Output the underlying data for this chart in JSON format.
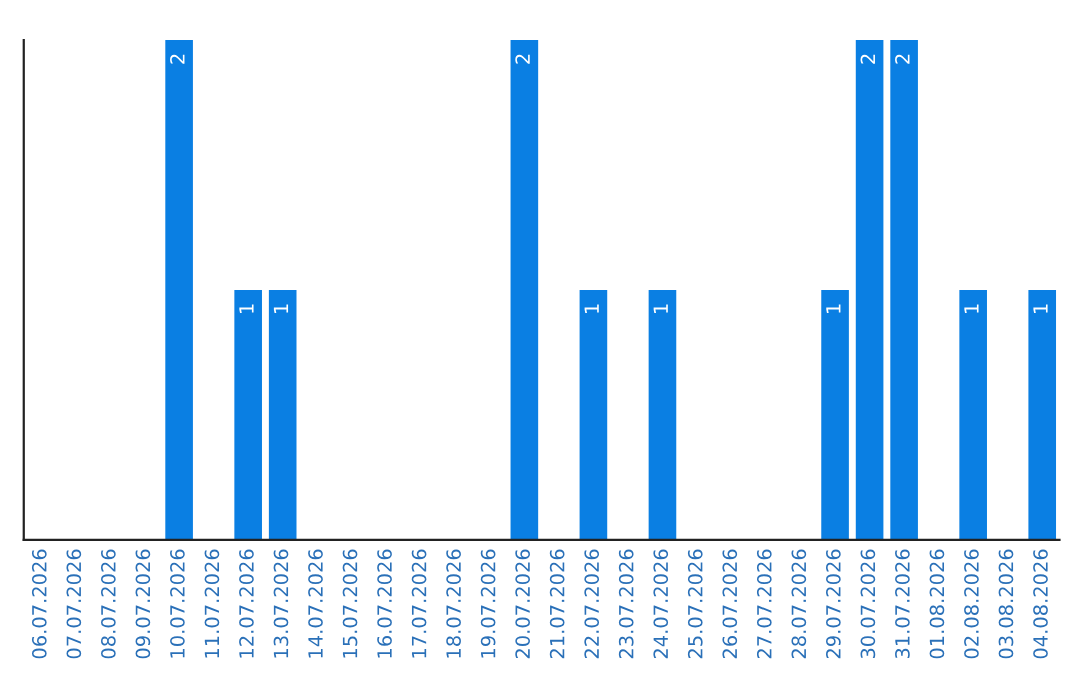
{
  "chart_data": {
    "type": "bar",
    "categories": [
      "06.07.2026",
      "07.07.2026",
      "08.07.2026",
      "09.07.2026",
      "10.07.2026",
      "11.07.2026",
      "12.07.2026",
      "13.07.2026",
      "14.07.2026",
      "15.07.2026",
      "16.07.2026",
      "17.07.2026",
      "18.07.2026",
      "19.07.2026",
      "20.07.2026",
      "21.07.2026",
      "22.07.2026",
      "23.07.2026",
      "24.07.2026",
      "25.07.2026",
      "26.07.2026",
      "27.07.2026",
      "28.07.2026",
      "29.07.2026",
      "30.07.2026",
      "31.07.2026",
      "01.08.2026",
      "02.08.2026",
      "03.08.2026",
      "04.08.2026"
    ],
    "values": [
      0,
      0,
      0,
      0,
      2,
      0,
      1,
      1,
      0,
      0,
      0,
      0,
      0,
      0,
      2,
      0,
      1,
      0,
      1,
      0,
      0,
      0,
      0,
      1,
      2,
      2,
      0,
      1,
      0,
      1
    ],
    "value_labels": [
      null,
      null,
      null,
      null,
      "2",
      null,
      "1",
      "1",
      null,
      null,
      null,
      null,
      null,
      null,
      "2",
      null,
      "1",
      null,
      "1",
      null,
      null,
      null,
      null,
      "1",
      "2",
      "2",
      null,
      "1",
      null,
      "1"
    ],
    "color": "#0a7fe3",
    "ylim": [
      0,
      2
    ],
    "tick_labels": "x",
    "grid": false,
    "legend": false
  }
}
